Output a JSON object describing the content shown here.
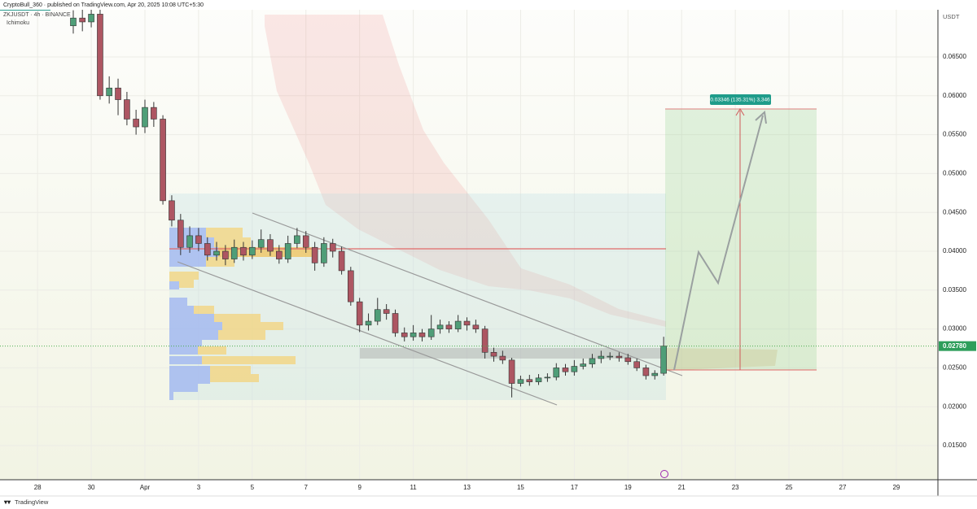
{
  "page": {
    "published": "CryptoBull_360 · published on TradingView.com, Apr 20, 2025 10:08 UTC+5:30",
    "symbol": "ZKJUSDT · 4h · BINANCE",
    "indicator": "Ichimoku",
    "unit": "USDT",
    "position_label": "0.03346 (135.31%) 3,346",
    "footer": "TradingView"
  },
  "chart_data": {
    "type": "candlestick",
    "x": [
      1.33,
      1.67,
      2.0,
      2.33,
      2.67,
      3.0,
      3.33,
      3.67,
      4.0,
      4.33,
      4.67,
      5.0,
      5.33,
      5.67,
      6.0,
      6.33,
      6.67,
      7.0,
      7.33,
      7.67,
      8.0,
      8.33,
      8.67,
      9.0,
      9.33,
      9.67,
      10.0,
      10.33,
      10.67,
      11.0,
      11.33,
      11.67,
      12.0,
      12.33,
      12.67,
      13.0,
      13.33,
      13.67,
      14.0,
      14.33,
      14.67,
      15.0,
      15.33,
      15.67,
      16.0,
      16.33,
      16.67,
      17.0,
      17.33,
      17.67,
      18.0,
      18.33,
      18.67,
      19.0,
      19.33,
      19.67,
      20.0,
      20.33,
      20.67,
      21.0,
      21.33,
      21.67,
      22.0,
      22.33,
      22.67,
      23.0,
      23.33
    ],
    "open": [
      0.069,
      0.07,
      0.0695,
      0.0705,
      0.06,
      0.061,
      0.0595,
      0.057,
      0.056,
      0.0585,
      0.057,
      0.0465,
      0.044,
      0.0405,
      0.042,
      0.041,
      0.0395,
      0.04,
      0.039,
      0.0405,
      0.0395,
      0.0405,
      0.0415,
      0.04,
      0.039,
      0.041,
      0.042,
      0.0405,
      0.0385,
      0.041,
      0.04,
      0.0375,
      0.0335,
      0.0305,
      0.031,
      0.0325,
      0.032,
      0.0295,
      0.029,
      0.0295,
      0.029,
      0.03,
      0.0305,
      0.03,
      0.031,
      0.0305,
      0.03,
      0.027,
      0.0265,
      0.026,
      0.023,
      0.0235,
      0.0232,
      0.0237,
      0.0238,
      0.025,
      0.0245,
      0.0252,
      0.0255,
      0.0262,
      0.0265,
      0.0265,
      0.0263,
      0.0258,
      0.025,
      0.024,
      0.0243
    ],
    "high": [
      0.071,
      0.0712,
      0.0715,
      0.0712,
      0.0625,
      0.0622,
      0.0605,
      0.0582,
      0.0595,
      0.0592,
      0.0575,
      0.0472,
      0.0448,
      0.0432,
      0.043,
      0.0418,
      0.0412,
      0.0408,
      0.0415,
      0.0412,
      0.0414,
      0.0428,
      0.0422,
      0.0408,
      0.042,
      0.043,
      0.0426,
      0.0412,
      0.0418,
      0.0416,
      0.0406,
      0.038,
      0.034,
      0.032,
      0.034,
      0.0332,
      0.0325,
      0.0302,
      0.0305,
      0.03,
      0.0318,
      0.0312,
      0.031,
      0.0318,
      0.0315,
      0.0312,
      0.0304,
      0.0276,
      0.0272,
      0.0263,
      0.024,
      0.0241,
      0.0242,
      0.0243,
      0.0256,
      0.0255,
      0.026,
      0.0262,
      0.0268,
      0.0272,
      0.027,
      0.027,
      0.0268,
      0.0262,
      0.0254,
      0.0247,
      0.029
    ],
    "low": [
      0.068,
      0.0683,
      0.0688,
      0.0595,
      0.059,
      0.0575,
      0.0562,
      0.055,
      0.0552,
      0.056,
      0.046,
      0.0432,
      0.0395,
      0.0398,
      0.04,
      0.0388,
      0.0388,
      0.0382,
      0.0385,
      0.0388,
      0.039,
      0.0398,
      0.0394,
      0.0384,
      0.0385,
      0.0404,
      0.0398,
      0.0375,
      0.038,
      0.0392,
      0.037,
      0.033,
      0.0296,
      0.0298,
      0.0305,
      0.0312,
      0.029,
      0.0284,
      0.0285,
      0.0284,
      0.0286,
      0.0294,
      0.0295,
      0.0296,
      0.0298,
      0.0295,
      0.0262,
      0.0258,
      0.0255,
      0.0212,
      0.0226,
      0.0227,
      0.0228,
      0.0232,
      0.0234,
      0.024,
      0.024,
      0.0248,
      0.025,
      0.0256,
      0.026,
      0.0258,
      0.0254,
      0.0246,
      0.0235,
      0.0235,
      0.024
    ],
    "close": [
      0.07,
      0.0695,
      0.0705,
      0.06,
      0.061,
      0.0595,
      0.057,
      0.056,
      0.0585,
      0.057,
      0.0465,
      0.044,
      0.0405,
      0.042,
      0.041,
      0.0395,
      0.04,
      0.039,
      0.0405,
      0.0395,
      0.0405,
      0.0415,
      0.04,
      0.039,
      0.041,
      0.042,
      0.0405,
      0.0385,
      0.041,
      0.04,
      0.0375,
      0.0335,
      0.0305,
      0.031,
      0.0325,
      0.032,
      0.0295,
      0.029,
      0.0295,
      0.029,
      0.03,
      0.0305,
      0.03,
      0.031,
      0.0305,
      0.03,
      0.027,
      0.0265,
      0.026,
      0.023,
      0.0235,
      0.0232,
      0.0237,
      0.0238,
      0.025,
      0.0245,
      0.0252,
      0.0255,
      0.0262,
      0.0265,
      0.0265,
      0.0263,
      0.0258,
      0.025,
      0.024,
      0.0243,
      0.0278
    ],
    "up_color": "#4f9e78",
    "down_color": "#ad5662",
    "xlim": [
      -1.4,
      33.55
    ],
    "xticks": [
      {
        "value": 0,
        "label": "28"
      },
      {
        "value": 2,
        "label": "30"
      },
      {
        "value": 4,
        "label": "Apr"
      },
      {
        "value": 6,
        "label": "3"
      },
      {
        "value": 8,
        "label": "5"
      },
      {
        "value": 10,
        "label": "7"
      },
      {
        "value": 12,
        "label": "9"
      },
      {
        "value": 14,
        "label": "11"
      },
      {
        "value": 16,
        "label": "13"
      },
      {
        "value": 18,
        "label": "15"
      },
      {
        "value": 20,
        "label": "17"
      },
      {
        "value": 22,
        "label": "19"
      },
      {
        "value": 24,
        "label": "21"
      },
      {
        "value": 26,
        "label": "23"
      },
      {
        "value": 28,
        "label": "25"
      },
      {
        "value": 30,
        "label": "27"
      },
      {
        "value": 32,
        "label": "29"
      }
    ],
    "ylim": [
      0.01061,
      0.07232
    ],
    "yticks": [
      {
        "value": 0.015,
        "label": "0.01500"
      },
      {
        "value": 0.02,
        "label": "0.02000"
      },
      {
        "value": 0.025,
        "label": "0.02500"
      },
      {
        "value": 0.03,
        "label": "0.03000"
      },
      {
        "value": 0.035,
        "label": "0.03500"
      },
      {
        "value": 0.04,
        "label": "0.04000"
      },
      {
        "value": 0.045,
        "label": "0.04500"
      },
      {
        "value": 0.05,
        "label": "0.05000"
      },
      {
        "value": 0.055,
        "label": "0.05500"
      },
      {
        "value": 0.06,
        "label": "0.06000"
      },
      {
        "value": 0.065,
        "label": "0.06500"
      }
    ],
    "last_price": {
      "value": 0.0278,
      "label": "0.02780"
    },
    "grid": true
  }
}
